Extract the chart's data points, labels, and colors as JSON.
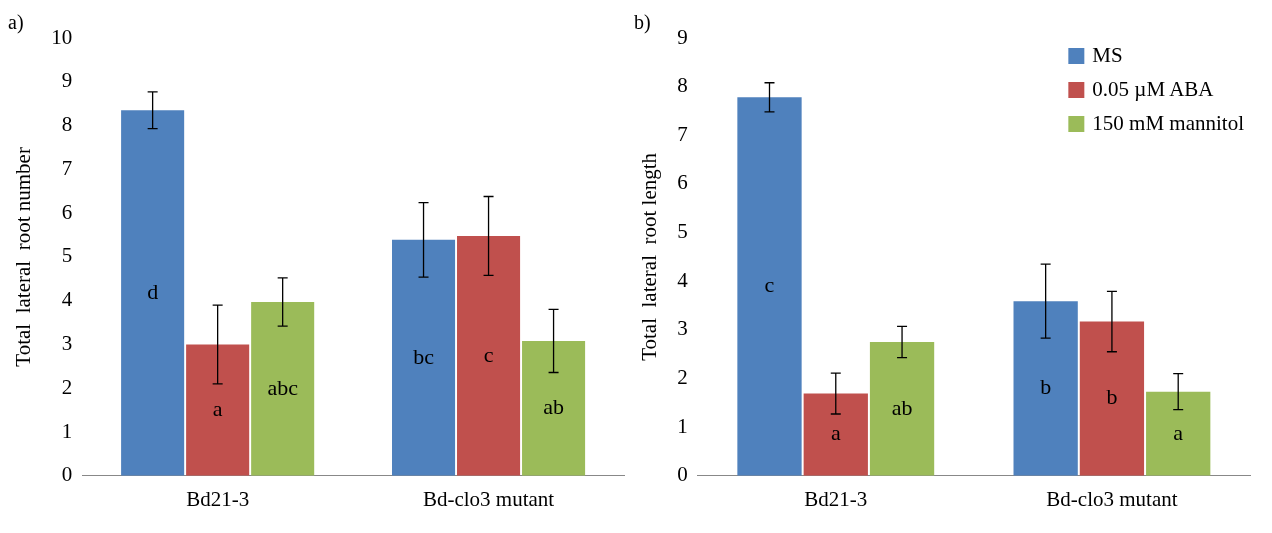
{
  "chart_data": [
    {
      "type": "bar",
      "title": "a)",
      "ylabel": "Total  lateral  root number",
      "categories": [
        "Bd21-3",
        "Bd-clo3 mutant"
      ],
      "ylim": [
        0,
        10
      ],
      "yticks": [
        0,
        1,
        2,
        3,
        4,
        5,
        6,
        7,
        8,
        9,
        10
      ],
      "grid": false,
      "legend": false,
      "series": [
        {
          "color": "#4f81bd",
          "values": [
            8.35,
            5.39
          ],
          "errors": [
            0.42,
            0.85
          ],
          "value_labels": [
            "d",
            "bc"
          ]
        },
        {
          "color": "#c0504d",
          "values": [
            3.0,
            5.48
          ],
          "errors": [
            0.9,
            0.9
          ],
          "value_labels": [
            "a",
            "c"
          ]
        },
        {
          "color": "#9bbb59",
          "values": [
            3.97,
            3.08
          ],
          "errors": [
            0.55,
            0.72
          ],
          "value_labels": [
            "abc",
            "ab"
          ]
        }
      ]
    },
    {
      "type": "bar",
      "title": "b)",
      "ylabel": "Total  lateral  root length",
      "categories": [
        "Bd21-3",
        "Bd-clo3 mutant"
      ],
      "ylim": [
        0,
        9
      ],
      "yticks": [
        0,
        1,
        2,
        3,
        4,
        5,
        6,
        7,
        8,
        9
      ],
      "grid": false,
      "legend": "top right",
      "series": [
        {
          "name": "MS",
          "color": "#4f81bd",
          "values": [
            7.78,
            3.59
          ],
          "errors": [
            0.3,
            0.76
          ],
          "value_labels": [
            "c",
            "b"
          ]
        },
        {
          "name": "0.05 µM ABA",
          "color": "#c0504d",
          "values": [
            1.69,
            3.17
          ],
          "errors": [
            0.42,
            0.62
          ],
          "value_labels": [
            "a",
            "b"
          ]
        },
        {
          "name": "150 mM mannitol",
          "color": "#9bbb59",
          "values": [
            2.75,
            1.73
          ],
          "errors": [
            0.32,
            0.37
          ],
          "value_labels": [
            "ab",
            "a"
          ]
        }
      ]
    }
  ]
}
